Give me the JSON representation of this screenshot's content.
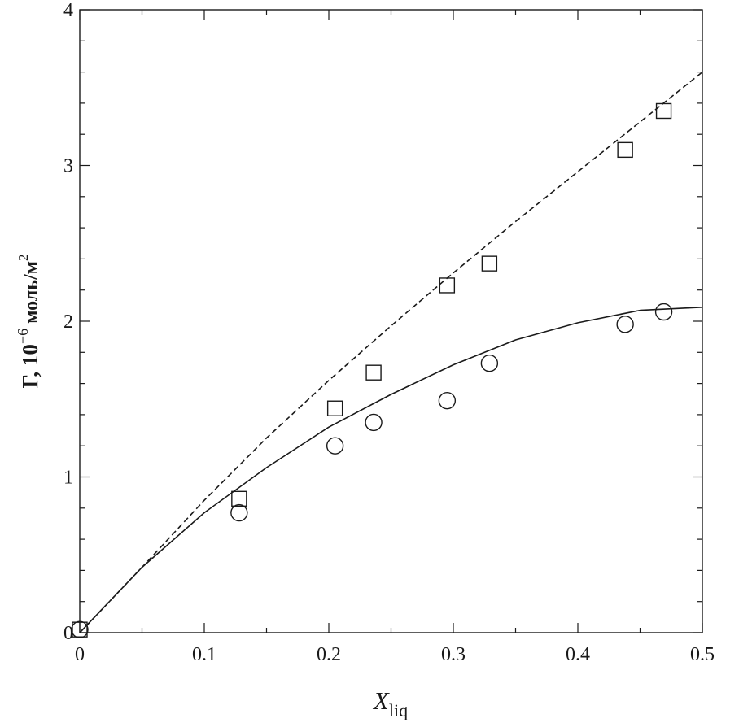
{
  "chart_data": {
    "type": "scatter",
    "xlabel": {
      "main": "X",
      "sub": "liq"
    },
    "ylabel": {
      "main": "Γ, 10",
      "exp": "−6",
      "unit": " моль/м",
      "unit_exp": "2"
    },
    "xlim": [
      0,
      0.5
    ],
    "ylim": [
      0,
      4
    ],
    "x_ticks": [
      0,
      0.1,
      0.2,
      0.3,
      0.4,
      0.5
    ],
    "y_ticks": [
      0,
      1,
      2,
      3,
      4
    ],
    "x_tick_labels": [
      "0",
      "0.1",
      "0.2",
      "0.3",
      "0.4",
      "0.5"
    ],
    "y_tick_labels": [
      "0",
      "1",
      "2",
      "3",
      "4"
    ],
    "grid": false,
    "series": [
      {
        "marker": "square",
        "x": [
          0.0,
          0.128,
          0.205,
          0.236,
          0.295,
          0.329,
          0.438,
          0.469
        ],
        "y": [
          0.02,
          0.86,
          1.44,
          1.67,
          2.23,
          2.37,
          3.1,
          3.35
        ]
      },
      {
        "marker": "circle",
        "x": [
          0.0,
          0.128,
          0.205,
          0.236,
          0.295,
          0.329,
          0.438,
          0.469
        ],
        "y": [
          0.02,
          0.77,
          1.2,
          1.35,
          1.49,
          1.73,
          1.98,
          2.06
        ]
      },
      {
        "line": "dashed",
        "x": [
          0.0,
          0.05,
          0.1,
          0.15,
          0.2,
          0.25,
          0.3,
          0.35,
          0.4,
          0.45,
          0.5
        ],
        "y": [
          0.0,
          0.42,
          0.85,
          1.25,
          1.62,
          1.97,
          2.31,
          2.64,
          2.96,
          3.28,
          3.6
        ]
      },
      {
        "line": "solid",
        "x": [
          0.0,
          0.05,
          0.1,
          0.15,
          0.2,
          0.25,
          0.3,
          0.35,
          0.4,
          0.45,
          0.5
        ],
        "y": [
          0.0,
          0.42,
          0.77,
          1.06,
          1.32,
          1.53,
          1.72,
          1.88,
          1.99,
          2.07,
          2.09
        ]
      }
    ]
  }
}
